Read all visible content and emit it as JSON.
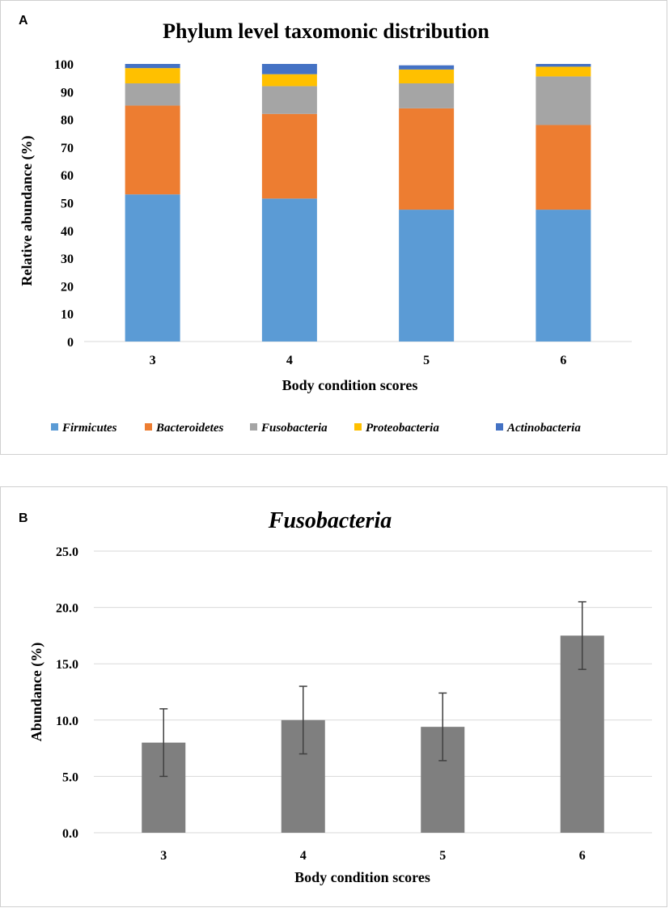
{
  "chart_data": [
    {
      "panel": "A",
      "type": "bar",
      "stacked": true,
      "title": "Phylum level taxomonic distribution",
      "xlabel": "Body condition scores",
      "ylabel": "Relative abundance (%)",
      "ylim": [
        0,
        100
      ],
      "yticks": [
        "0",
        "10",
        "20",
        "30",
        "40",
        "50",
        "60",
        "70",
        "80",
        "90",
        "100"
      ],
      "categories": [
        "3",
        "4",
        "5",
        "6"
      ],
      "legend_position": "bottom",
      "series": [
        {
          "name": "Firmicutes",
          "color": "#5B9BD5",
          "values": [
            53,
            51.5,
            47.5,
            47.5
          ]
        },
        {
          "name": "Bacteroidetes",
          "color": "#ED7D31",
          "values": [
            32,
            30.5,
            36.5,
            30.5
          ]
        },
        {
          "name": "Fusobacteria",
          "color": "#A5A5A5",
          "values": [
            8,
            10,
            9,
            17.5
          ]
        },
        {
          "name": "Proteobacteria",
          "color": "#FFC000",
          "values": [
            5.5,
            4.3,
            5,
            3.5
          ]
        },
        {
          "name": "Actinobacteria",
          "color": "#4472C4",
          "values": [
            1.5,
            3.7,
            1.5,
            1
          ]
        }
      ],
      "grid": false
    },
    {
      "panel": "B",
      "type": "bar",
      "title": "Fusobacteria",
      "xlabel": "Body condition scores",
      "ylabel": "Abundance (%)",
      "ylim": [
        0,
        25
      ],
      "yticks": [
        "0.0",
        "5.0",
        "10.0",
        "15.0",
        "20.0",
        "25.0"
      ],
      "categories": [
        "3",
        "4",
        "5",
        "6"
      ],
      "values": [
        8.0,
        10.0,
        9.4,
        17.5
      ],
      "error": [
        3.0,
        3.0,
        3.0,
        3.0
      ],
      "bar_color": "#7F7F7F",
      "grid": true
    }
  ]
}
